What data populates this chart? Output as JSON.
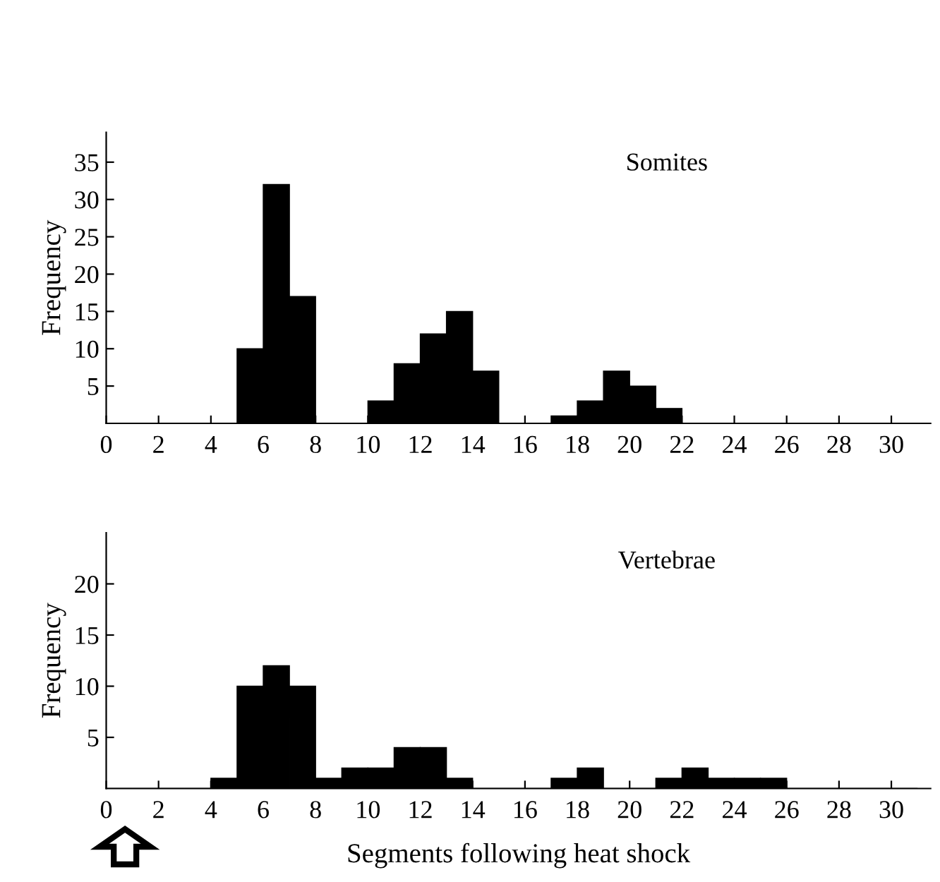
{
  "chart_data": [
    {
      "type": "histogram",
      "title": "Somites",
      "ylabel": "Frequency",
      "color": "#000000",
      "bins": [
        0,
        1,
        2,
        3,
        4,
        5,
        6,
        7,
        8,
        9,
        10,
        11,
        12,
        13,
        14,
        15,
        16,
        17,
        18,
        19,
        20,
        21,
        22,
        23,
        24,
        25,
        26,
        27,
        28,
        29,
        30,
        31
      ],
      "values": [
        0,
        0,
        0,
        0,
        0,
        10,
        32,
        17,
        0,
        0,
        3,
        8,
        12,
        15,
        7,
        0,
        0,
        1,
        3,
        7,
        5,
        2,
        0,
        0,
        0,
        0,
        0,
        0,
        0,
        0,
        0
      ],
      "xlim": [
        0,
        31.5
      ],
      "ylim": [
        0,
        39
      ],
      "xticks": [
        0,
        2,
        4,
        6,
        8,
        10,
        12,
        14,
        16,
        18,
        20,
        22,
        24,
        26,
        28,
        30
      ],
      "yticks": [
        5,
        10,
        15,
        20,
        25,
        30,
        35
      ],
      "grid": false
    },
    {
      "type": "histogram",
      "title": "Vertebrae",
      "ylabel": "Frequency",
      "xlabel": "Segments following heat shock",
      "color": "#000000",
      "bins": [
        0,
        1,
        2,
        3,
        4,
        5,
        6,
        7,
        8,
        9,
        10,
        11,
        12,
        13,
        14,
        15,
        16,
        17,
        18,
        19,
        20,
        21,
        22,
        23,
        24,
        25,
        26,
        27,
        28,
        29,
        30,
        31
      ],
      "values": [
        0,
        0,
        0,
        0,
        1,
        10,
        12,
        10,
        1,
        2,
        2,
        4,
        4,
        1,
        0,
        0,
        0,
        1,
        2,
        0,
        0,
        1,
        2,
        1,
        1,
        1,
        0,
        0,
        0,
        0,
        0
      ],
      "xlim": [
        0,
        31.5
      ],
      "ylim": [
        0,
        25
      ],
      "xticks": [
        0,
        2,
        4,
        6,
        8,
        10,
        12,
        14,
        16,
        18,
        20,
        22,
        24,
        26,
        28,
        30
      ],
      "yticks": [
        5,
        10,
        15,
        20
      ],
      "grid": false
    }
  ]
}
